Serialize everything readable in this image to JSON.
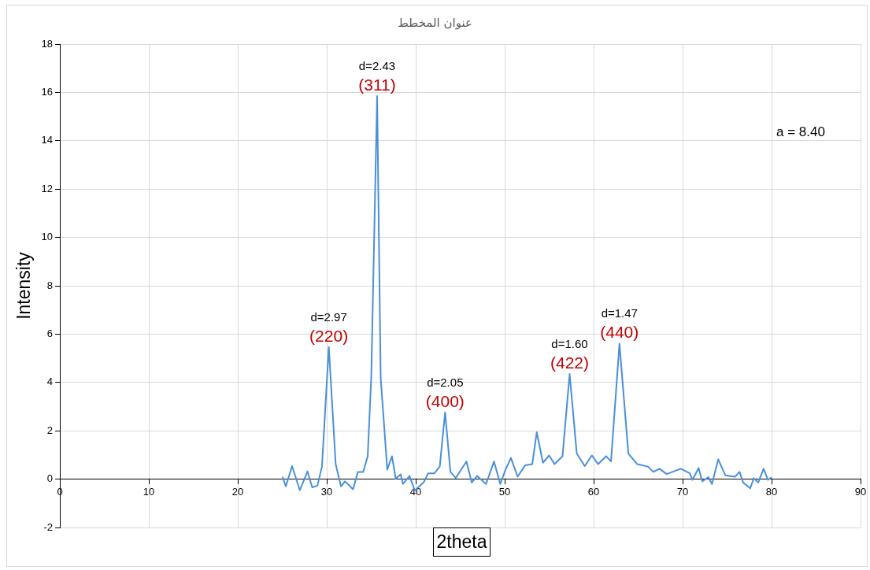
{
  "chart_data": {
    "type": "line",
    "title": "عنوان المخطط",
    "xlabel": "2theta",
    "ylabel": "Intensity",
    "series": [
      {
        "color": "#4a90d9",
        "x": [
          25.02,
          25.4,
          26.1,
          26.97,
          27.83,
          28.36,
          28.95,
          29.46,
          30.23,
          31.0,
          31.6,
          32.05,
          32.95,
          33.5,
          34.1,
          34.6,
          35.0,
          35.66,
          36.06,
          36.8,
          37.33,
          37.75,
          38.3,
          38.57,
          39.3,
          39.9,
          40.9,
          41.4,
          42.1,
          42.7,
          43.3,
          43.9,
          44.5,
          45.7,
          46.3,
          46.9,
          47.9,
          48.8,
          49.5,
          50.1,
          50.7,
          51.45,
          52.3,
          53.1,
          53.6,
          54.3,
          55.0,
          55.6,
          56.5,
          57.3,
          58.1,
          59.0,
          59.8,
          60.5,
          61.4,
          61.95,
          62.9,
          63.9,
          64.9,
          66.1,
          66.7,
          67.4,
          68.2,
          69.8,
          70.8,
          71.1,
          71.8,
          72.2,
          72.9,
          73.3,
          74.0,
          74.8,
          75.9,
          76.4,
          76.8,
          77.6,
          78.0,
          78.5,
          79.1,
          79.6,
          80.0
        ],
        "values": [
          0.1,
          -0.3,
          0.54,
          -0.46,
          0.32,
          -0.34,
          -0.27,
          0.52,
          5.47,
          0.62,
          -0.3,
          -0.09,
          -0.42,
          0.3,
          0.3,
          0.95,
          4.2,
          15.85,
          4.2,
          0.4,
          0.95,
          0.02,
          0.2,
          -0.2,
          0.13,
          -0.47,
          -0.13,
          0.24,
          0.24,
          0.52,
          2.76,
          0.3,
          0.05,
          0.73,
          -0.14,
          0.13,
          -0.2,
          0.73,
          -0.2,
          0.4,
          0.88,
          0.1,
          0.57,
          0.62,
          1.94,
          0.68,
          0.98,
          0.62,
          0.95,
          4.35,
          1.06,
          0.54,
          0.98,
          0.62,
          0.95,
          0.73,
          5.61,
          1.06,
          0.62,
          0.52,
          0.3,
          0.43,
          0.21,
          0.43,
          0.24,
          -0.03,
          0.46,
          -0.09,
          0.08,
          -0.2,
          0.82,
          0.16,
          0.1,
          0.3,
          -0.14,
          -0.38,
          0.04,
          -0.14,
          0.43,
          -0.03,
          0.07
        ]
      }
    ],
    "xlim": [
      0,
      90
    ],
    "xticks": [
      0,
      10,
      20,
      30,
      40,
      50,
      60,
      70,
      80,
      90
    ],
    "ylim": [
      -2,
      18
    ],
    "yticks": [
      -2,
      0,
      2,
      4,
      6,
      8,
      10,
      12,
      14,
      16,
      18
    ],
    "grid": true,
    "legend": false,
    "marker": "none",
    "line_style": "solid",
    "annotations": [
      {
        "text": "d=2.97",
        "x": 30.23,
        "y": 5.47
      },
      {
        "text": "(220)",
        "x": 30.23,
        "y": 5.47
      },
      {
        "text": "d=2.43",
        "x": 35.66,
        "y": 15.85
      },
      {
        "text": "(311)",
        "x": 35.66,
        "y": 15.85
      },
      {
        "text": "d=2.05",
        "x": 43.3,
        "y": 2.76
      },
      {
        "text": "(400)",
        "x": 43.3,
        "y": 2.76
      },
      {
        "text": "d=1.60",
        "x": 57.3,
        "y": 4.35
      },
      {
        "text": "(422)",
        "x": 57.3,
        "y": 4.35
      },
      {
        "text": "d=1.47",
        "x": 62.9,
        "y": 5.61
      },
      {
        "text": "(440)",
        "x": 62.9,
        "y": 5.61
      },
      "a = 8.40"
    ]
  }
}
